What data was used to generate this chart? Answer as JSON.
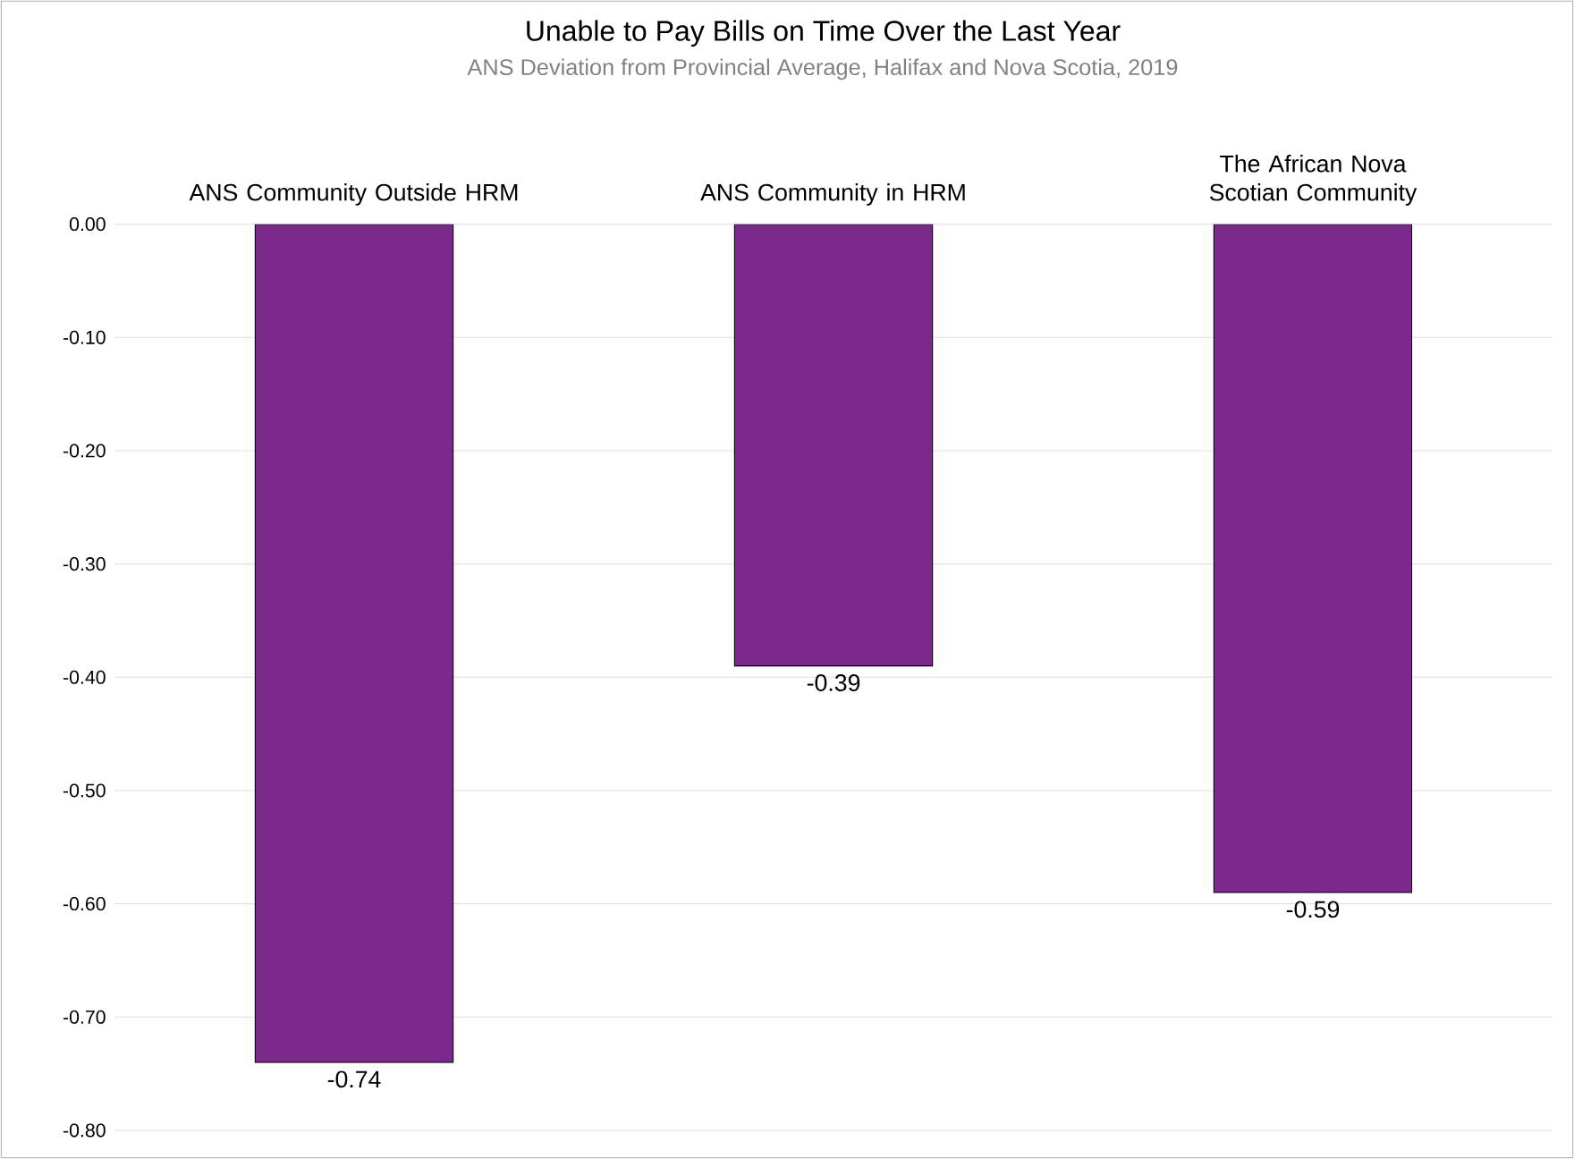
{
  "chart_data": {
    "type": "bar",
    "title": "Unable to Pay Bills on Time Over the Last Year",
    "subtitle": "ANS Deviation from Provincial Average, Halifax and Nova Scotia, 2019",
    "categories": [
      "ANS Community Outside HRM",
      "ANS Community in HRM",
      "The African Nova Scotian Community"
    ],
    "values": [
      -0.74,
      -0.39,
      -0.59
    ],
    "color": "#7b2a8b",
    "data_labels": true,
    "grid": "y",
    "ylim": [
      -0.8,
      0
    ],
    "yticks": [
      {
        "value": 0,
        "label": "0.00"
      },
      {
        "value": -0.1,
        "label": "-0.10"
      },
      {
        "value": -0.2,
        "label": "-0.20"
      },
      {
        "value": -0.3,
        "label": "-0.30"
      },
      {
        "value": -0.4,
        "label": "-0.40"
      },
      {
        "value": -0.5,
        "label": "-0.50"
      },
      {
        "value": -0.6,
        "label": "-0.60"
      },
      {
        "value": -0.7,
        "label": "-0.70"
      },
      {
        "value": -0.8,
        "label": "-0.80"
      }
    ]
  }
}
